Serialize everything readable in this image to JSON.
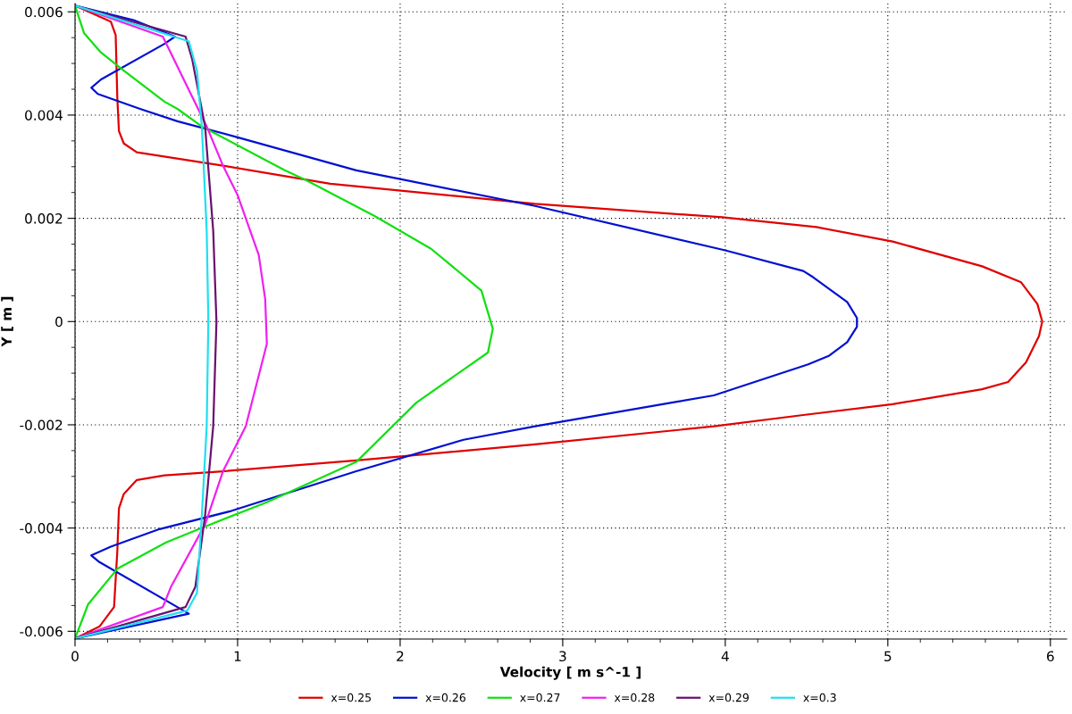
{
  "chart_data": {
    "type": "line",
    "xlabel": "Velocity [ m s^-1 ]",
    "ylabel": "Y [ m ]",
    "xlim": [
      0,
      6.1
    ],
    "ylim": [
      -0.00615,
      0.00616
    ],
    "xticks": [
      0,
      1,
      2,
      3,
      4,
      5,
      6
    ],
    "yticks": [
      -0.006,
      -0.004,
      -0.002,
      0,
      0.002,
      0.004,
      0.006
    ],
    "grid": true,
    "legend": "bottom",
    "marker": "none",
    "line_style": "solid",
    "series": [
      {
        "name": "x=0.25",
        "color": "#e00000",
        "x": [
          0,
          0.22,
          0.25,
          0.26,
          0.27,
          0.3,
          0.38,
          0.91,
          1.57,
          2.83,
          3.98,
          4.56,
          5.03,
          5.58,
          5.82,
          5.92,
          5.95,
          5.93,
          5.85,
          5.74,
          5.58,
          5.03,
          4.48,
          3.93,
          2.83,
          1.73,
          0.91,
          0.55,
          0.38,
          0.3,
          0.27,
          0.26,
          0.24,
          0.15,
          0
        ],
        "values": [
          0.00612,
          0.00581,
          0.00555,
          0.00434,
          0.00369,
          0.00345,
          0.00328,
          0.00302,
          0.00267,
          0.00228,
          0.00202,
          0.00183,
          0.00155,
          0.00107,
          0.00076,
          0.00034,
          0,
          -0.00028,
          -0.00079,
          -0.00117,
          -0.00131,
          -0.0016,
          -0.00181,
          -0.00203,
          -0.00238,
          -0.00269,
          -0.0029,
          -0.00298,
          -0.00307,
          -0.00334,
          -0.00362,
          -0.00445,
          -0.00553,
          -0.00591,
          -0.00614
        ]
      },
      {
        "name": "x=0.26",
        "color": "#0010d0",
        "x": [
          0,
          0.36,
          0.615,
          0.55,
          0.16,
          0.1,
          0.14,
          0.4,
          0.63,
          1.0,
          1.73,
          2.0,
          2.83,
          4.0,
          4.48,
          4.54,
          4.75,
          4.81,
          4.81,
          4.75,
          4.64,
          4.51,
          3.93,
          3.71,
          2.83,
          2.39,
          1.73,
          0.96,
          0.52,
          0.22,
          0.1,
          0.15,
          0.7,
          0
        ],
        "values": [
          0.00612,
          0.00584,
          0.00552,
          0.00538,
          0.00469,
          0.00453,
          0.00441,
          0.00412,
          0.00388,
          0.00357,
          0.00293,
          0.00276,
          0.00224,
          0.00138,
          0.00098,
          0.00086,
          0.00038,
          7e-05,
          -0.0001,
          -0.0004,
          -0.00066,
          -0.00083,
          -0.00143,
          -0.00155,
          -0.00203,
          -0.00229,
          -0.0029,
          -0.00367,
          -0.00402,
          -0.00436,
          -0.00453,
          -0.00466,
          -0.00566,
          -0.00614
        ]
      },
      {
        "name": "x=0.27",
        "color": "#10e010",
        "x": [
          0,
          0.055,
          0.16,
          0.3,
          0.55,
          0.63,
          0.78,
          1.29,
          1.42,
          1.84,
          2.19,
          2.5,
          2.57,
          2.54,
          2.1,
          1.73,
          1.18,
          0.8,
          0.56,
          0.26,
          0.08,
          0
        ],
        "values": [
          0.00612,
          0.00559,
          0.00521,
          0.00486,
          0.00426,
          0.00412,
          0.00378,
          0.00293,
          0.00274,
          0.00205,
          0.00141,
          0.0006,
          -0.00014,
          -0.0006,
          -0.00157,
          -0.00272,
          -0.0035,
          -0.00397,
          -0.00428,
          -0.00479,
          -0.00548,
          -0.00614
        ]
      },
      {
        "name": "x=0.28",
        "color": "#f020f0",
        "x": [
          0,
          0.54,
          0.81,
          0.91,
          1.0,
          1.13,
          1.17,
          1.18,
          1.05,
          0.91,
          0.8,
          0.59,
          0.54,
          0
        ],
        "values": [
          0.00612,
          0.00552,
          0.00378,
          0.00302,
          0.00245,
          0.00129,
          0.00043,
          -0.00043,
          -0.00203,
          -0.0029,
          -0.00393,
          -0.00514,
          -0.00553,
          -0.00614
        ]
      },
      {
        "name": "x=0.29",
        "color": "#6a1070",
        "x": [
          0,
          0.68,
          0.72,
          0.8,
          0.85,
          0.87,
          0.85,
          0.8,
          0.74,
          0.68,
          0
        ],
        "values": [
          0.00612,
          0.00552,
          0.00509,
          0.00378,
          0.00176,
          0,
          -0.00203,
          -0.00376,
          -0.00514,
          -0.00553,
          -0.00614
        ]
      },
      {
        "name": "x=0.3",
        "color": "#20e0f0",
        "x": [
          0,
          0.7,
          0.75,
          0.78,
          0.81,
          0.82,
          0.81,
          0.78,
          0.75,
          0.69,
          0
        ],
        "values": [
          0.00612,
          0.00543,
          0.00486,
          0.00378,
          0.00176,
          0,
          -0.00203,
          -0.00376,
          -0.00526,
          -0.0056,
          -0.00614
        ]
      }
    ]
  }
}
